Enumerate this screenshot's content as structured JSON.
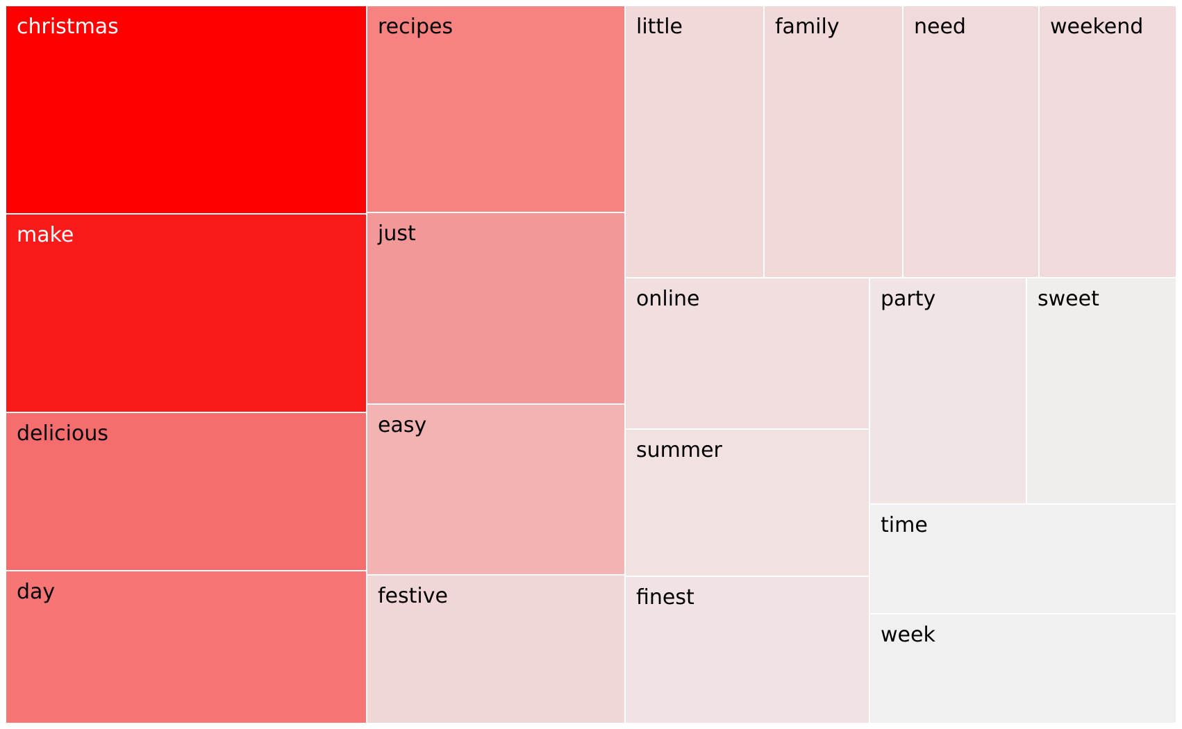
{
  "chart_data": {
    "type": "treemap",
    "items": [
      {
        "label": "christmas",
        "color": "#ff0000",
        "text_color": "#ffffff"
      },
      {
        "label": "make",
        "color": "#fb1a1a",
        "text_color": "#ffffff"
      },
      {
        "label": "delicious",
        "color": "#f56d6d",
        "text_color": "#000000"
      },
      {
        "label": "day",
        "color": "#f67676",
        "text_color": "#000000"
      },
      {
        "label": "recipes",
        "color": "#f68282",
        "text_color": "#000000"
      },
      {
        "label": "just",
        "color": "#f39898",
        "text_color": "#000000"
      },
      {
        "label": "easy",
        "color": "#f4b3b3",
        "text_color": "#000000"
      },
      {
        "label": "festive",
        "color": "#f1d6d7",
        "text_color": "#000000"
      },
      {
        "label": "little",
        "color": "#f1d9da",
        "text_color": "#000000"
      },
      {
        "label": "family",
        "color": "#f1d9da",
        "text_color": "#000000"
      },
      {
        "label": "need",
        "color": "#f1dadb",
        "text_color": "#000000"
      },
      {
        "label": "weekend",
        "color": "#f1dadb",
        "text_color": "#000000"
      },
      {
        "label": "online",
        "color": "#f1dfe0",
        "text_color": "#000000"
      },
      {
        "label": "summer",
        "color": "#f1e1e1",
        "text_color": "#000000"
      },
      {
        "label": "finest",
        "color": "#f1e2e3",
        "text_color": "#000000"
      },
      {
        "label": "party",
        "color": "#f1e4e4",
        "text_color": "#000000"
      },
      {
        "label": "sweet",
        "color": "#f0eded",
        "text_color": "#000000"
      },
      {
        "label": "time",
        "color": "#f0f0f0",
        "text_color": "#000000"
      },
      {
        "label": "week",
        "color": "#f0f0f0",
        "text_color": "#000000"
      }
    ]
  }
}
